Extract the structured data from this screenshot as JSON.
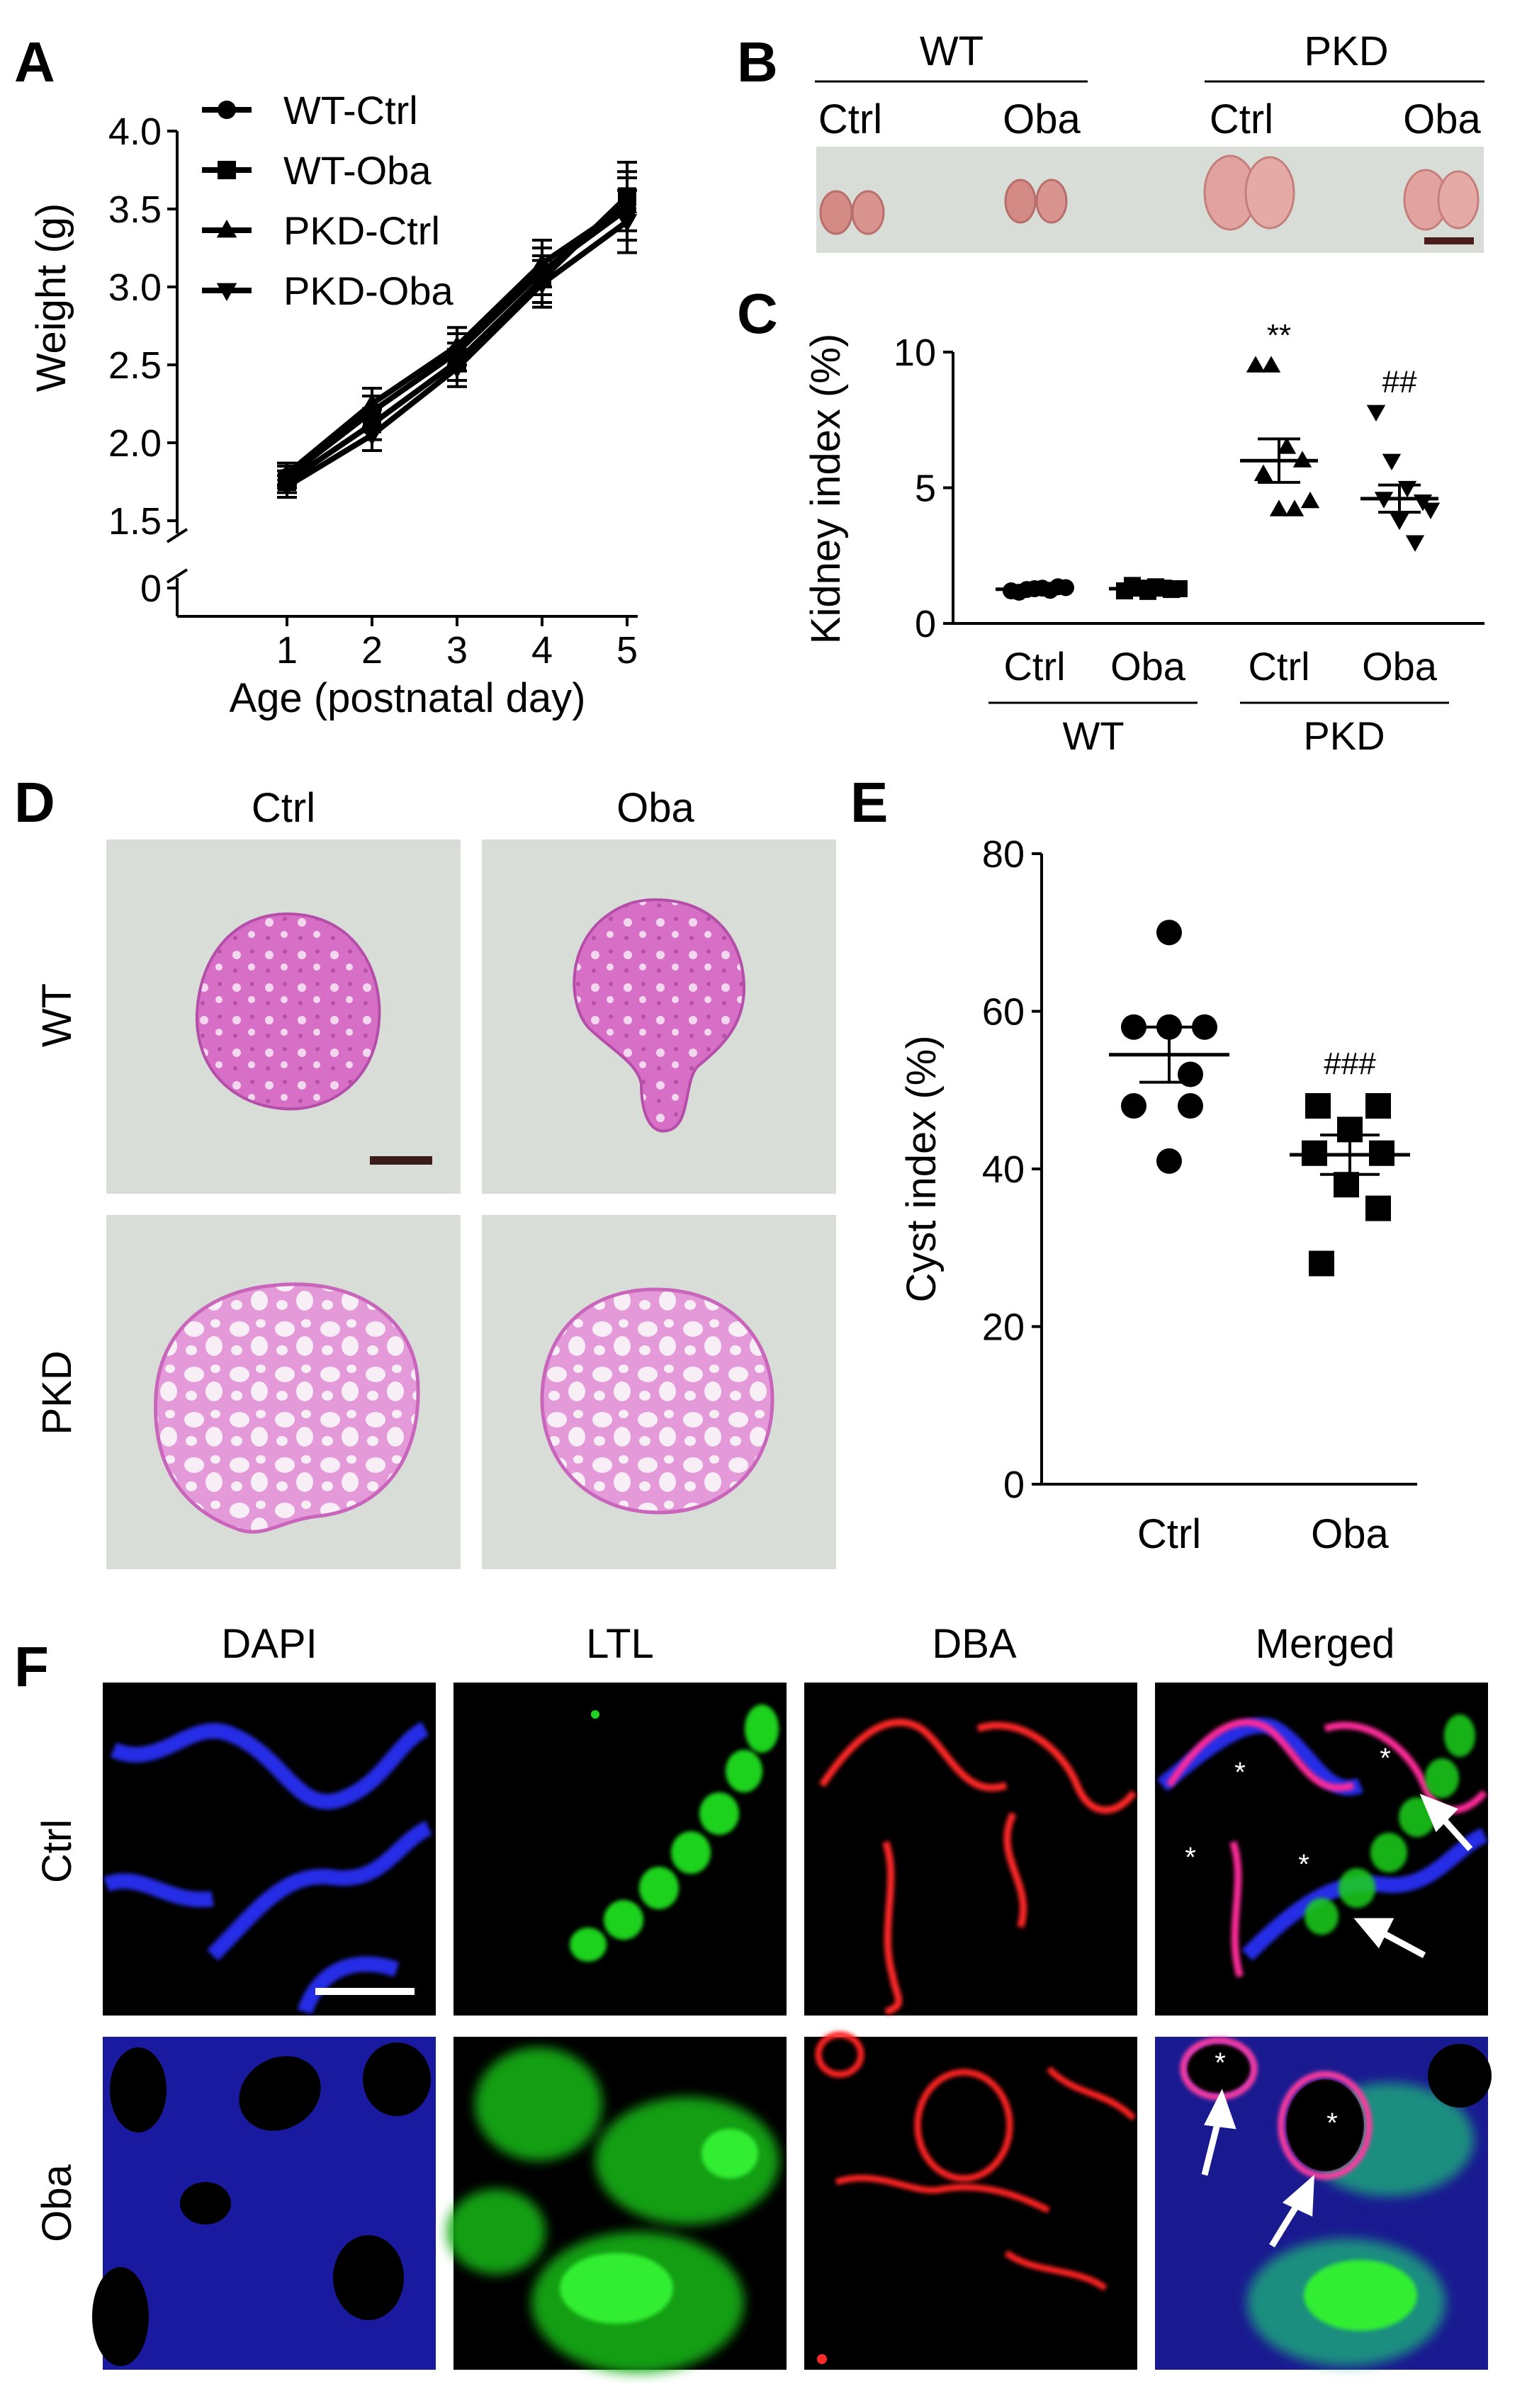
{
  "panels": {
    "A": "A",
    "B": "B",
    "C": "C",
    "D": "D",
    "E": "E",
    "F": "F"
  },
  "colors": {
    "axis": "#000000",
    "photo_bg": "#d9ddd8",
    "kidney": "#d9958f",
    "he_stain": "#d76fc6",
    "micro_bg": "#000000",
    "dapi": "#2a2cff",
    "ltl": "#22dd22",
    "dba": "#ff2222"
  },
  "chart_data": [
    {
      "panel": "A",
      "type": "line",
      "xlabel": "Age (postnatal day)",
      "ylabel": "Weight (g)",
      "x": [
        1,
        2,
        3,
        4,
        5
      ],
      "x_ticks": [
        "1",
        "2",
        "3",
        "4",
        "5"
      ],
      "y_ticks": [
        "0",
        "1.5",
        "2.0",
        "2.5",
        "3.0",
        "3.5",
        "4.0"
      ],
      "ylim": [
        1.5,
        4.0
      ],
      "axis_break": true,
      "legend": "top-left",
      "series": [
        {
          "name": "WT-Ctrl",
          "marker": "circle",
          "values": [
            1.78,
            2.2,
            2.58,
            3.1,
            3.5
          ],
          "err": [
            0.07,
            0.1,
            0.12,
            0.15,
            0.2
          ]
        },
        {
          "name": "WT-Oba",
          "marker": "square",
          "values": [
            1.75,
            2.12,
            2.52,
            3.05,
            3.58
          ],
          "err": [
            0.07,
            0.1,
            0.12,
            0.15,
            0.22
          ]
        },
        {
          "name": "PKD-Ctrl",
          "marker": "triangle-up",
          "values": [
            1.8,
            2.25,
            2.62,
            3.15,
            3.52
          ],
          "err": [
            0.07,
            0.1,
            0.12,
            0.15,
            0.22
          ]
        },
        {
          "name": "PKD-Oba",
          "marker": "triangle-down",
          "values": [
            1.72,
            2.05,
            2.48,
            3.02,
            3.42
          ],
          "err": [
            0.07,
            0.1,
            0.12,
            0.15,
            0.2
          ]
        }
      ]
    },
    {
      "panel": "C",
      "type": "scatter",
      "ylabel": "Kidney index (%)",
      "y_ticks": [
        "0",
        "5",
        "10"
      ],
      "ylim": [
        0,
        10
      ],
      "categories": [
        "Ctrl",
        "Oba",
        "Ctrl",
        "Oba"
      ],
      "groups": [
        "WT",
        "PKD"
      ],
      "series": [
        {
          "group": "WT",
          "category": "Ctrl",
          "marker": "circle",
          "values": [
            1.2,
            1.25,
            1.3,
            1.35,
            1.15,
            1.28,
            1.22,
            1.32
          ],
          "mean": 1.26,
          "sem": 0.05
        },
        {
          "group": "WT",
          "category": "Oba",
          "marker": "square",
          "values": [
            1.2,
            1.3,
            1.35,
            1.25,
            1.4,
            1.18,
            1.3,
            1.28
          ],
          "mean": 1.28,
          "sem": 0.05
        },
        {
          "group": "PKD",
          "category": "Ctrl",
          "marker": "triangle-up",
          "values": [
            9.5,
            9.5,
            6.5,
            6.0,
            5.5,
            4.2,
            4.2,
            4.5
          ],
          "mean": 6.0,
          "sem": 0.8,
          "annotation": "**"
        },
        {
          "group": "PKD",
          "category": "Oba",
          "marker": "triangle-down",
          "values": [
            7.8,
            6.0,
            5.0,
            4.5,
            4.6,
            3.8,
            3.0,
            4.2
          ],
          "mean": 4.6,
          "sem": 0.5,
          "annotation": "##"
        }
      ]
    },
    {
      "panel": "E",
      "type": "scatter",
      "ylabel": "Cyst index (%)",
      "y_ticks": [
        "0",
        "20",
        "40",
        "60",
        "80"
      ],
      "ylim": [
        0,
        80
      ],
      "categories": [
        "Ctrl",
        "Oba"
      ],
      "series": [
        {
          "category": "Ctrl",
          "marker": "circle",
          "values": [
            70,
            58,
            58,
            58,
            52,
            48,
            48,
            41
          ],
          "mean": 54.5,
          "sem": 3.5
        },
        {
          "category": "Oba",
          "marker": "square",
          "values": [
            48,
            48,
            45,
            42,
            42,
            38,
            35,
            28
          ],
          "mean": 41.8,
          "sem": 2.5,
          "annotation": "###"
        }
      ]
    }
  ],
  "panel_b": {
    "groups": [
      "WT",
      "PKD"
    ],
    "columns": [
      "Ctrl",
      "Oba",
      "Ctrl",
      "Oba"
    ]
  },
  "panel_d": {
    "columns": [
      "Ctrl",
      "Oba"
    ],
    "rows": [
      "WT",
      "PKD"
    ]
  },
  "panel_f": {
    "columns": [
      "DAPI",
      "LTL",
      "DBA",
      "Merged"
    ],
    "rows": [
      "Ctrl",
      "Oba"
    ],
    "cyst_marker": "*"
  }
}
